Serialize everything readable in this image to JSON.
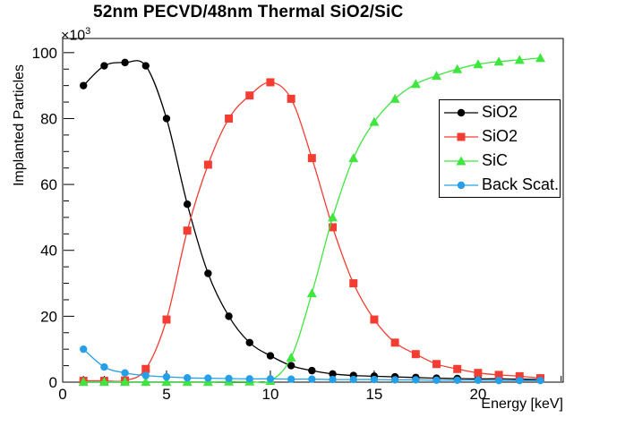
{
  "title": "52nm PECVD/48nm Thermal SiO2/SiC",
  "y_scale": {
    "base": "×10",
    "exponent": "3"
  },
  "colors": {
    "background": "#ffffff",
    "frame": "#000000",
    "series_black": "#000000",
    "series_red": "#f33d33",
    "series_green": "#40e640",
    "series_blue": "#25a0e8"
  },
  "chart_data": {
    "type": "line",
    "title": "52nm PECVD/48nm Thermal SiO2/SiC",
    "xlabel": "Energy [keV]",
    "ylabel": "Implanted Particles",
    "y_unit_multiplier": "×10³",
    "xlim": [
      0,
      24.1
    ],
    "ylim": [
      0,
      104.3
    ],
    "x_major_ticks": [
      0,
      5,
      10,
      15,
      20
    ],
    "x_minor_step": 1,
    "y_major_ticks": [
      0,
      20,
      40,
      60,
      80,
      100
    ],
    "y_minor_step": 5,
    "grid": false,
    "legend_position": "middle-right",
    "x": [
      1,
      2,
      3,
      4,
      5,
      6,
      7,
      8,
      9,
      10,
      11,
      12,
      13,
      14,
      15,
      16,
      17,
      18,
      19,
      20,
      21,
      22,
      23
    ],
    "series": [
      {
        "name": "sio2-pecvd",
        "label": "SiO2",
        "marker": "circle",
        "color": "#000000",
        "values": [
          90,
          96,
          97,
          96,
          80,
          54,
          33,
          20,
          12,
          8,
          5,
          3.5,
          2.5,
          2,
          1.8,
          1.6,
          1.4,
          1.2,
          1.1,
          1,
          1,
          0.9,
          0.8
        ]
      },
      {
        "name": "sio2-thermal",
        "label": "SiO2",
        "marker": "square",
        "color": "#f33d33",
        "values": [
          0.4,
          0.4,
          0.5,
          4,
          19,
          46,
          66,
          80,
          87,
          91,
          86,
          68,
          47,
          30,
          19,
          12,
          8.5,
          5.5,
          4,
          2.8,
          2.2,
          1.8,
          1.2
        ]
      },
      {
        "name": "sic",
        "label": "SiC",
        "marker": "triangle",
        "color": "#40e640",
        "values": [
          0.1,
          0.1,
          0.1,
          0.1,
          0.1,
          0.1,
          0.1,
          0.2,
          0.2,
          0.4,
          7.5,
          27,
          50,
          68,
          79,
          86,
          90.5,
          93,
          95,
          96.5,
          97.3,
          97.8,
          98.4
        ]
      },
      {
        "name": "back-scatter",
        "label": "Back Scat.",
        "marker": "circle",
        "color": "#25a0e8",
        "values": [
          10,
          4.6,
          2.8,
          2,
          1.6,
          1.3,
          1.2,
          1.1,
          1,
          1,
          0.9,
          0.9,
          0.8,
          0.8,
          0.8,
          0.7,
          0.7,
          0.6,
          0.6,
          0.6,
          0.5,
          0.5,
          0.5
        ]
      }
    ]
  }
}
